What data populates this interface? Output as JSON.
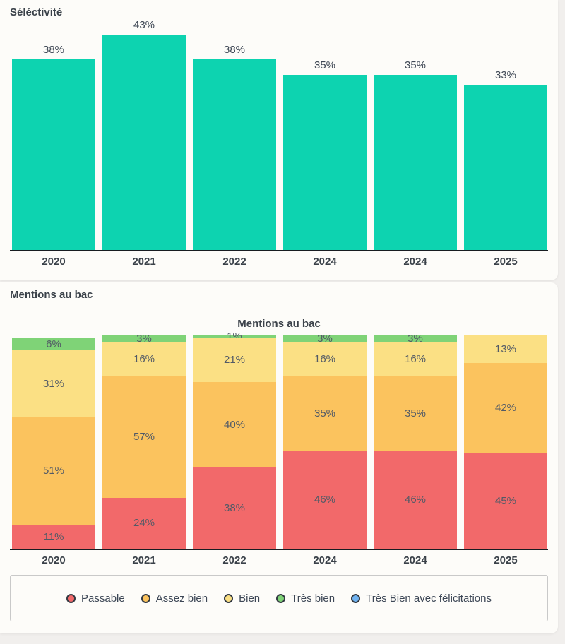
{
  "page": {
    "background": "#f1efed",
    "card_background": "#fdfcf9"
  },
  "selectivity_section": {
    "title": "Séléctivité"
  },
  "mentions_section": {
    "title": "Mentions au bac",
    "chart_title": "Mentions au bac"
  },
  "chart_data": [
    {
      "type": "bar",
      "title": "Séléctivité",
      "categories": [
        "2020",
        "2021",
        "2022",
        "2024",
        "2024",
        "2025"
      ],
      "values": [
        38,
        43,
        38,
        35,
        35,
        33
      ],
      "value_labels": [
        "38%",
        "43%",
        "38%",
        "35%",
        "35%",
        "33%"
      ],
      "unit": "%",
      "bar_color": "#0dd3b0",
      "ylim": [
        0,
        44
      ],
      "grid": false,
      "legend_position": "none"
    },
    {
      "type": "bar",
      "stacked": true,
      "title": "Mentions au bac",
      "categories": [
        "2020",
        "2021",
        "2022",
        "2024",
        "2024",
        "2025"
      ],
      "series": [
        {
          "name": "Passable",
          "color": "#f2696a",
          "values": [
            11,
            24,
            38,
            46,
            46,
            45
          ]
        },
        {
          "name": "Assez bien",
          "color": "#fbc35e",
          "values": [
            51,
            57,
            40,
            35,
            35,
            42
          ]
        },
        {
          "name": "Bien",
          "color": "#fbe084",
          "values": [
            31,
            16,
            21,
            16,
            16,
            13
          ]
        },
        {
          "name": "Très bien",
          "color": "#7fd377",
          "values": [
            6,
            3,
            1,
            3,
            3,
            0
          ]
        },
        {
          "name": "Très Bien avec félicitations",
          "color": "#70b3f1",
          "values": [
            0,
            0,
            0,
            0,
            0,
            0
          ]
        }
      ],
      "unit": "%",
      "ylim": [
        0,
        100
      ],
      "grid": false,
      "legend_position": "bottom"
    }
  ],
  "legend": {
    "items": [
      {
        "label": "Passable",
        "color": "#f2696a"
      },
      {
        "label": "Assez bien",
        "color": "#fbc35e"
      },
      {
        "label": "Bien",
        "color": "#fbe084"
      },
      {
        "label": "Très bien",
        "color": "#7fd377"
      },
      {
        "label": "Très Bien avec félicitations",
        "color": "#70b3f1"
      }
    ]
  }
}
